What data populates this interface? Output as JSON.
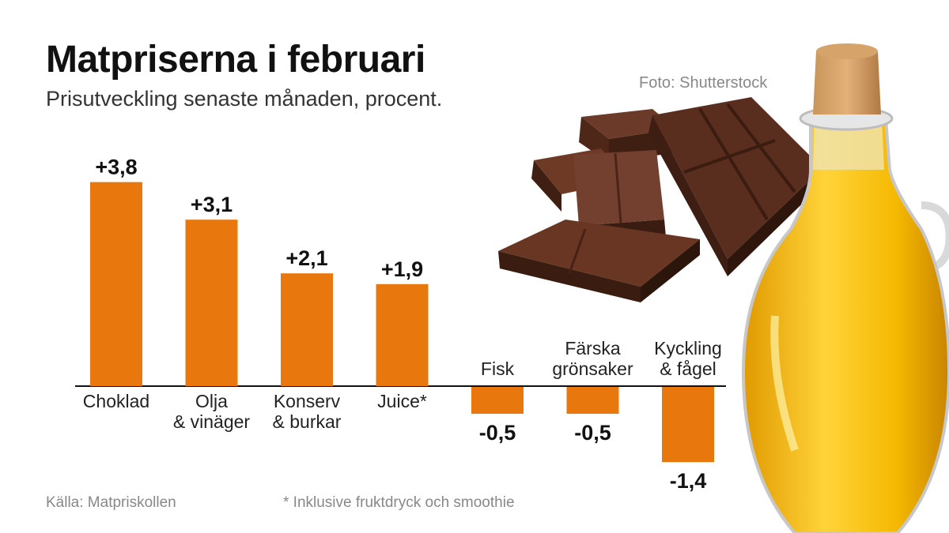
{
  "title": "Matpriserna i februari",
  "subtitle": "Prisutveckling senaste månaden, procent.",
  "photo_credit": "Foto: Shutterstock",
  "source": "Källa: Matpriskollen",
  "footnote": "* Inklusive fruktdryck och smoothie",
  "colors": {
    "bar": "#e8780e",
    "baseline": "#111111",
    "chocolate": "#5a2e1e",
    "oil": "#f2b705"
  },
  "illustrations": [
    "chocolate-bar",
    "oil-bottle"
  ],
  "chart_data": {
    "type": "bar",
    "categories": [
      "Choklad",
      "Olja & vinäger",
      "Konserv & burkar",
      "Juice*",
      "Fisk",
      "Färska grönsaker",
      "Kyckling & fågel"
    ],
    "category_lines": [
      [
        "Choklad"
      ],
      [
        "Olja",
        "& vinäger"
      ],
      [
        "Konserv",
        "& burkar"
      ],
      [
        "Juice*"
      ],
      [
        "Fisk"
      ],
      [
        "Färska",
        "grönsaker"
      ],
      [
        "Kyckling",
        "& fågel"
      ]
    ],
    "values": [
      3.8,
      3.1,
      2.1,
      1.9,
      -0.5,
      -0.5,
      -1.4
    ],
    "data_labels": [
      "+3,8",
      "+3,1",
      "+2,1",
      "+1,9",
      "-0,5",
      "-0,5",
      "-1,4"
    ],
    "ylim": [
      -1.4,
      3.8
    ],
    "grid": false,
    "legend": "none"
  }
}
